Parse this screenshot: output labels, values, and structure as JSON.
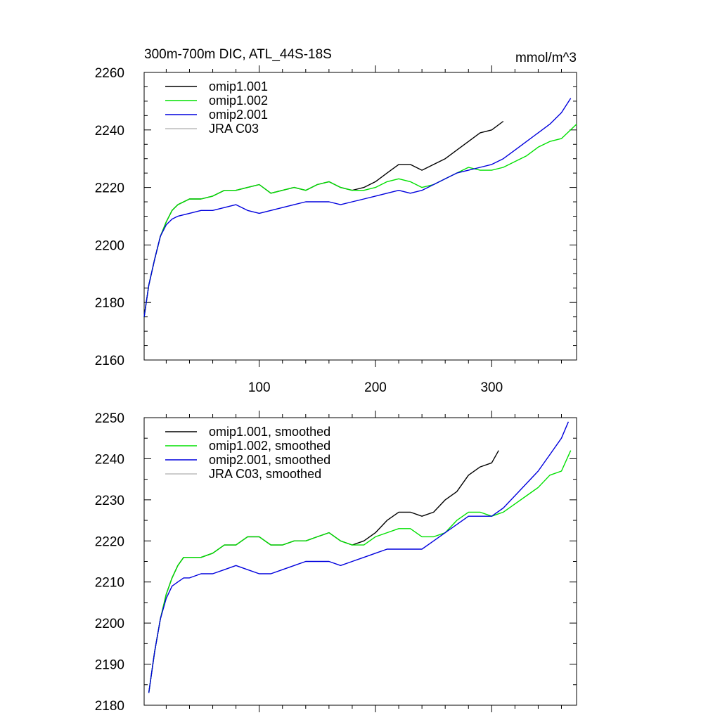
{
  "chart_data": [
    {
      "type": "line",
      "title": "300m-700m DIC, ATL_44S-18S",
      "units": "mmol/m^3",
      "xlim": [
        1,
        373
      ],
      "ylim": [
        2160,
        2260
      ],
      "x_ticks": [
        100,
        200,
        300
      ],
      "x_ticks_labeled": true,
      "y_ticks": [
        2160,
        2180,
        2200,
        2220,
        2240,
        2260
      ],
      "legend_position": "top-left",
      "series": [
        {
          "name": "omip1.001",
          "color": "#000000",
          "x": [
            1,
            5,
            10,
            15,
            20,
            25,
            30,
            40,
            50,
            60,
            70,
            80,
            90,
            100,
            110,
            120,
            130,
            140,
            150,
            160,
            170,
            180,
            190,
            200,
            210,
            220,
            230,
            240,
            250,
            260,
            270,
            280,
            290,
            300,
            310
          ],
          "y": [
            2175,
            2186,
            2195,
            2203,
            2208,
            2212,
            2214,
            2216,
            2216,
            2217,
            2219,
            2219,
            2220,
            2221,
            2218,
            2219,
            2220,
            2219,
            2221,
            2222,
            2220,
            2219,
            2220,
            2222,
            2225,
            2228,
            2228,
            2226,
            2228,
            2230,
            2233,
            2236,
            2239,
            2240,
            2243
          ]
        },
        {
          "name": "omip1.002",
          "color": "#00e000",
          "x": [
            1,
            5,
            10,
            15,
            20,
            25,
            30,
            40,
            50,
            60,
            70,
            80,
            90,
            100,
            110,
            120,
            130,
            140,
            150,
            160,
            170,
            180,
            190,
            200,
            210,
            220,
            230,
            240,
            250,
            260,
            270,
            280,
            290,
            300,
            310,
            320,
            330,
            340,
            350,
            360,
            373
          ],
          "y": [
            2175,
            2186,
            2195,
            2203,
            2208,
            2212,
            2214,
            2216,
            2216,
            2217,
            2219,
            2219,
            2220,
            2221,
            2218,
            2219,
            2220,
            2219,
            2221,
            2222,
            2220,
            2219,
            2219,
            2220,
            2222,
            2223,
            2222,
            2220,
            2221,
            2223,
            2225,
            2227,
            2226,
            2226,
            2227,
            2229,
            2231,
            2234,
            2236,
            2237,
            2242
          ]
        },
        {
          "name": "omip2.001",
          "color": "#0000dd",
          "x": [
            1,
            5,
            10,
            15,
            20,
            25,
            30,
            40,
            50,
            60,
            70,
            80,
            90,
            100,
            110,
            120,
            130,
            140,
            150,
            160,
            170,
            180,
            190,
            200,
            210,
            220,
            230,
            240,
            250,
            260,
            270,
            280,
            290,
            300,
            310,
            320,
            330,
            340,
            350,
            360,
            368
          ],
          "y": [
            2175,
            2186,
            2195,
            2203,
            2207,
            2209,
            2210,
            2211,
            2212,
            2212,
            2213,
            2214,
            2212,
            2211,
            2212,
            2213,
            2214,
            2215,
            2215,
            2215,
            2214,
            2215,
            2216,
            2217,
            2218,
            2219,
            2218,
            2219,
            2221,
            2223,
            2225,
            2226,
            2227,
            2228,
            2230,
            2233,
            2236,
            2239,
            2242,
            2246,
            2251
          ]
        },
        {
          "name": "JRA C03",
          "color": "#bbbbbb",
          "x": [],
          "y": []
        }
      ]
    },
    {
      "type": "line",
      "xlim": [
        1,
        373
      ],
      "ylim": [
        2180,
        2250
      ],
      "x_ticks": [
        100,
        200,
        300
      ],
      "x_ticks_labeled": false,
      "y_ticks": [
        2180,
        2190,
        2200,
        2210,
        2220,
        2230,
        2240,
        2250
      ],
      "legend_position": "top-left",
      "series": [
        {
          "name": "omip1.001, smoothed",
          "color": "#000000",
          "x": [
            5,
            10,
            15,
            20,
            25,
            30,
            35,
            40,
            50,
            60,
            70,
            80,
            90,
            100,
            110,
            120,
            130,
            140,
            150,
            160,
            170,
            180,
            190,
            200,
            210,
            220,
            230,
            240,
            250,
            260,
            270,
            280,
            290,
            300,
            306
          ],
          "y": [
            2183,
            2193,
            2201,
            2207,
            2211,
            2214,
            2216,
            2216,
            2216,
            2217,
            2219,
            2219,
            2221,
            2221,
            2219,
            2219,
            2220,
            2220,
            2221,
            2222,
            2220,
            2219,
            2220,
            2222,
            2225,
            2227,
            2227,
            2226,
            2227,
            2230,
            2232,
            2236,
            2238,
            2239,
            2242
          ]
        },
        {
          "name": "omip1.002, smoothed",
          "color": "#00e000",
          "x": [
            5,
            10,
            15,
            20,
            25,
            30,
            35,
            40,
            50,
            60,
            70,
            80,
            90,
            100,
            110,
            120,
            130,
            140,
            150,
            160,
            170,
            180,
            190,
            200,
            210,
            220,
            230,
            240,
            250,
            260,
            270,
            280,
            290,
            300,
            310,
            320,
            330,
            340,
            350,
            360,
            368
          ],
          "y": [
            2183,
            2193,
            2201,
            2207,
            2211,
            2214,
            2216,
            2216,
            2216,
            2217,
            2219,
            2219,
            2221,
            2221,
            2219,
            2219,
            2220,
            2220,
            2221,
            2222,
            2220,
            2219,
            2219,
            2221,
            2222,
            2223,
            2223,
            2221,
            2221,
            2222,
            2225,
            2227,
            2227,
            2226,
            2227,
            2229,
            2231,
            2233,
            2236,
            2237,
            2242
          ]
        },
        {
          "name": "omip2.001, smoothed",
          "color": "#0000dd",
          "x": [
            5,
            10,
            15,
            20,
            25,
            30,
            35,
            40,
            50,
            60,
            70,
            80,
            90,
            100,
            110,
            120,
            130,
            140,
            150,
            160,
            170,
            180,
            190,
            200,
            210,
            220,
            230,
            240,
            250,
            260,
            270,
            280,
            290,
            300,
            310,
            320,
            330,
            340,
            350,
            360,
            366
          ],
          "y": [
            2183,
            2193,
            2201,
            2206,
            2209,
            2210,
            2211,
            2211,
            2212,
            2212,
            2213,
            2214,
            2213,
            2212,
            2212,
            2213,
            2214,
            2215,
            2215,
            2215,
            2214,
            2215,
            2216,
            2217,
            2218,
            2218,
            2218,
            2218,
            2220,
            2222,
            2224,
            2226,
            2226,
            2226,
            2228,
            2231,
            2234,
            2237,
            2241,
            2245,
            2249
          ]
        },
        {
          "name": "JRA C03, smoothed",
          "color": "#bbbbbb",
          "x": [],
          "y": []
        }
      ]
    }
  ]
}
